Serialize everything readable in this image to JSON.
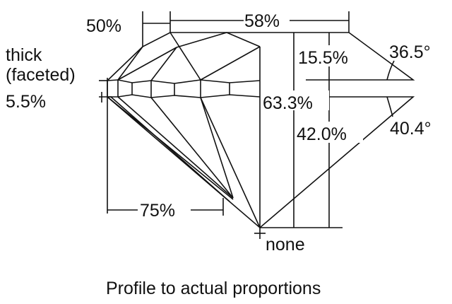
{
  "labels": {
    "girdle_line1": "thick",
    "girdle_line2": "(faceted)",
    "girdle_value": "5.5%",
    "crown_half": "50%",
    "table": "58%",
    "crown_height": "15.5%",
    "crown_angle": "36.5°",
    "total_depth": "63.3%",
    "pavilion_depth": "42.0%",
    "pavilion_angle": "40.4°",
    "lower_half": "75%",
    "culet": "none"
  },
  "caption": "Profile to actual proportions"
}
